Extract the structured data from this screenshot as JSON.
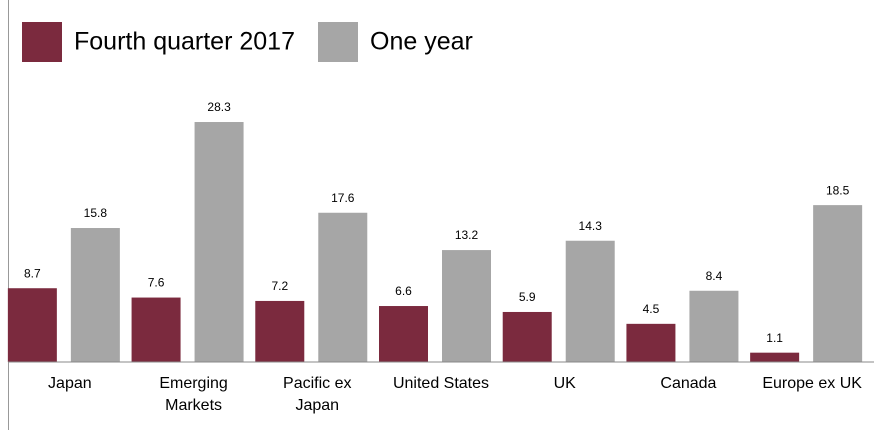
{
  "chart_data": {
    "type": "bar",
    "categories": [
      [
        "Japan"
      ],
      [
        "Emerging",
        "Markets"
      ],
      [
        "Pacific ex",
        "Japan"
      ],
      [
        "United States"
      ],
      [
        "UK"
      ],
      [
        "Canada"
      ],
      [
        "Europe ex UK"
      ]
    ],
    "series": [
      {
        "name": "Fourth quarter 2017",
        "color": "#7b2a3e",
        "values": [
          8.7,
          7.6,
          7.2,
          6.6,
          5.9,
          4.5,
          1.1
        ]
      },
      {
        "name": "One year",
        "color": "#a6a6a6",
        "values": [
          15.8,
          28.3,
          17.6,
          13.2,
          14.3,
          8.4,
          18.5
        ]
      }
    ],
    "ylim": [
      0,
      30
    ]
  }
}
